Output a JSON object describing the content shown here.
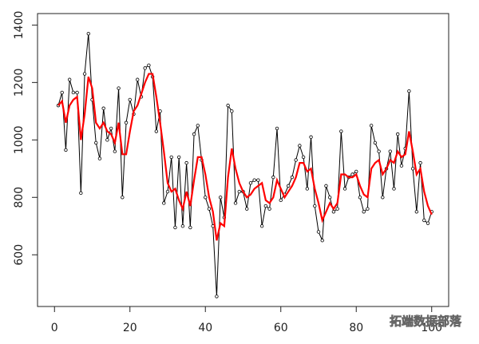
{
  "chart_data": {
    "type": "line",
    "x": [
      1,
      2,
      3,
      4,
      5,
      6,
      7,
      8,
      9,
      10,
      11,
      12,
      13,
      14,
      15,
      16,
      17,
      18,
      19,
      20,
      21,
      22,
      23,
      24,
      25,
      26,
      27,
      28,
      29,
      30,
      31,
      32,
      33,
      34,
      35,
      36,
      37,
      38,
      39,
      40,
      41,
      42,
      43,
      44,
      45,
      46,
      47,
      48,
      49,
      50,
      51,
      52,
      53,
      54,
      55,
      56,
      57,
      58,
      59,
      60,
      61,
      62,
      63,
      64,
      65,
      66,
      67,
      68,
      69,
      70,
      71,
      72,
      73,
      74,
      75,
      76,
      77,
      78,
      79,
      80,
      81,
      82,
      83,
      84,
      85,
      86,
      87,
      88,
      89,
      90,
      91,
      92,
      93,
      94,
      95,
      96,
      97,
      98,
      99,
      100
    ],
    "series": [
      {
        "color": "#000000",
        "values": [
          1120,
          1165,
          965,
          1210,
          1165,
          1165,
          815,
          1230,
          1370,
          1140,
          990,
          935,
          1110,
          1000,
          1040,
          960,
          1180,
          800,
          1060,
          1140,
          1090,
          1210,
          1150,
          1250,
          1260,
          1220,
          1030,
          1100,
          780,
          820,
          940,
          695,
          940,
          700,
          920,
          695,
          1020,
          1050,
          930,
          800,
          760,
          700,
          455,
          800,
          730,
          1120,
          1100,
          780,
          820,
          820,
          760,
          850,
          860,
          860,
          700,
          770,
          760,
          870,
          1040,
          790,
          810,
          840,
          870,
          930,
          980,
          940,
          830,
          1010,
          770,
          680,
          650,
          840,
          800,
          750,
          760,
          1030,
          830,
          870,
          880,
          890,
          800,
          750,
          760,
          1050,
          990,
          960,
          800,
          900,
          960,
          830,
          1020,
          910,
          970,
          1170,
          900,
          750,
          920,
          720,
          710,
          750
        ]
      },
      {
        "color": "#ff0000",
        "values": [
          1120,
          1135,
          1060,
          1120,
          1140,
          1150,
          1000,
          1090,
          1220,
          1180,
          1060,
          1040,
          1060,
          1030,
          1020,
          990,
          1060,
          950,
          950,
          1030,
          1100,
          1120,
          1160,
          1200,
          1230,
          1230,
          1150,
          1060,
          960,
          850,
          820,
          830,
          790,
          760,
          820,
          770,
          860,
          940,
          940,
          880,
          800,
          750,
          650,
          710,
          700,
          870,
          970,
          900,
          850,
          820,
          800,
          810,
          830,
          840,
          850,
          790,
          780,
          800,
          860,
          830,
          800,
          820,
          840,
          870,
          920,
          920,
          890,
          900,
          830,
          780,
          720,
          750,
          780,
          760,
          780,
          880,
          880,
          870,
          870,
          880,
          840,
          810,
          800,
          900,
          920,
          930,
          880,
          900,
          930,
          920,
          960,
          940,
          950,
          1030,
          960,
          880,
          900,
          820,
          770,
          740
        ]
      }
    ],
    "xlim": [
      -4.5,
      104.5
    ],
    "ylim": [
      420,
      1440
    ],
    "xticks": [
      0,
      20,
      40,
      60,
      80,
      100
    ],
    "yticks": [
      600,
      800,
      1000,
      1200,
      1400
    ],
    "watermark": "拓端数据部落"
  }
}
